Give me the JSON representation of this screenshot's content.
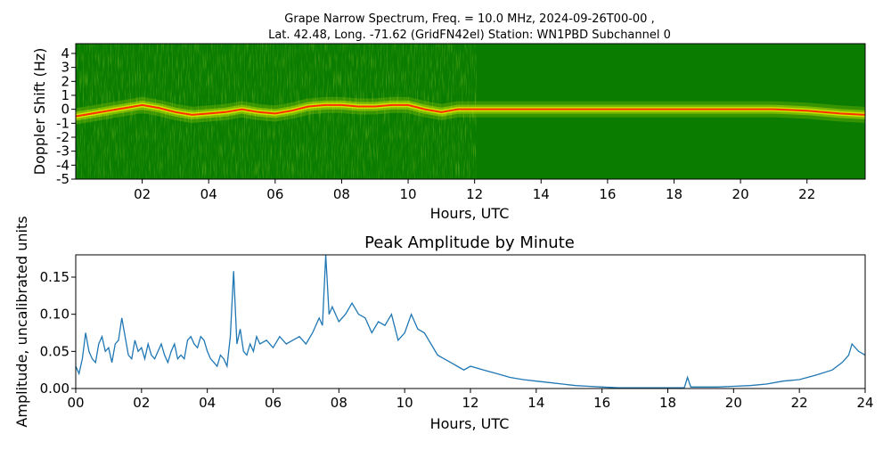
{
  "chart_data": [
    {
      "type": "heatmap",
      "title_line1": "Grape Narrow Spectrum, Freq. = 10.0 MHz, 2024-09-26T00-00 ,",
      "title_line2": "Lat.  42.48, Long. -71.62 (GridFN42el) Station: WN1PBD Subchannel 0",
      "xlabel": "Hours, UTC",
      "ylabel": "Doppler Shift (Hz)",
      "xlim": [
        0,
        23.75
      ],
      "ylim": [
        -5,
        4.7
      ],
      "x_ticks": [
        2,
        4,
        6,
        8,
        10,
        12,
        14,
        16,
        18,
        20,
        22
      ],
      "x_tick_labels": [
        "02",
        "04",
        "06",
        "08",
        "10",
        "12",
        "14",
        "16",
        "18",
        "20",
        "22"
      ],
      "y_ticks": [
        4,
        3,
        2,
        1,
        0,
        -1,
        -2,
        -3,
        -4,
        -5
      ],
      "y_tick_labels": [
        "4",
        "3",
        "2",
        "1",
        "0",
        "-1",
        "-2",
        "-3",
        "-4",
        "-5"
      ],
      "colormap": [
        "#007f00",
        "#ffff00",
        "#ff0000"
      ],
      "ridge": {
        "hours": [
          0,
          0.5,
          1,
          1.5,
          2,
          2.5,
          3,
          3.5,
          4,
          4.5,
          5,
          5.5,
          6,
          6.5,
          7,
          7.5,
          8,
          8.5,
          9,
          9.5,
          10,
          10.5,
          11,
          11.5,
          12,
          13,
          14,
          15,
          16,
          17,
          18,
          19,
          20,
          21,
          22,
          23,
          23.75
        ],
        "doppler_hz": [
          -0.5,
          -0.3,
          -0.1,
          0.1,
          0.3,
          0.1,
          -0.2,
          -0.4,
          -0.3,
          -0.2,
          0,
          -0.2,
          -0.3,
          -0.1,
          0.2,
          0.3,
          0.3,
          0.2,
          0.2,
          0.3,
          0.3,
          0,
          -0.2,
          0,
          0,
          0,
          0,
          0,
          0,
          0,
          0,
          0,
          0,
          0,
          -0.1,
          -0.3,
          -0.4
        ]
      }
    },
    {
      "type": "line",
      "title": "Peak Amplitude by Minute",
      "xlabel": "Hours, UTC",
      "ylabel": "Amplitude, uncalibrated units",
      "xlim": [
        0,
        24
      ],
      "ylim": [
        0,
        0.18
      ],
      "x_ticks": [
        0,
        2,
        4,
        6,
        8,
        10,
        12,
        14,
        16,
        18,
        20,
        22,
        24
      ],
      "x_tick_labels": [
        "00",
        "02",
        "04",
        "06",
        "08",
        "10",
        "12",
        "14",
        "16",
        "18",
        "20",
        "22",
        "24"
      ],
      "y_ticks": [
        0,
        0.05,
        0.1,
        0.15
      ],
      "y_tick_labels": [
        "0.00",
        "0.05",
        "0.10",
        "0.15"
      ],
      "color": "#1f77b4",
      "x": [
        0,
        0.1,
        0.2,
        0.3,
        0.4,
        0.5,
        0.6,
        0.7,
        0.8,
        0.9,
        1.0,
        1.1,
        1.2,
        1.3,
        1.4,
        1.5,
        1.6,
        1.7,
        1.8,
        1.9,
        2.0,
        2.1,
        2.2,
        2.3,
        2.4,
        2.5,
        2.6,
        2.7,
        2.8,
        2.9,
        3.0,
        3.1,
        3.2,
        3.3,
        3.4,
        3.5,
        3.6,
        3.7,
        3.8,
        3.9,
        4.0,
        4.1,
        4.2,
        4.3,
        4.4,
        4.5,
        4.6,
        4.7,
        4.8,
        4.9,
        5.0,
        5.1,
        5.2,
        5.3,
        5.4,
        5.5,
        5.6,
        5.8,
        6.0,
        6.2,
        6.4,
        6.6,
        6.8,
        7.0,
        7.2,
        7.4,
        7.5,
        7.6,
        7.7,
        7.8,
        8.0,
        8.2,
        8.4,
        8.6,
        8.8,
        9.0,
        9.2,
        9.4,
        9.6,
        9.8,
        10.0,
        10.2,
        10.4,
        10.6,
        10.8,
        11.0,
        11.2,
        11.4,
        11.6,
        11.8,
        12.0,
        12.4,
        12.8,
        13.2,
        13.6,
        14.0,
        14.4,
        14.8,
        15.2,
        15.6,
        16.0,
        16.5,
        17.0,
        17.5,
        18.0,
        18.5,
        18.6,
        18.7,
        19.0,
        19.5,
        20.0,
        20.5,
        21.0,
        21.5,
        22.0,
        22.5,
        23.0,
        23.3,
        23.5,
        23.6,
        23.8,
        24.0
      ],
      "y": [
        0.03,
        0.02,
        0.04,
        0.075,
        0.05,
        0.04,
        0.035,
        0.06,
        0.07,
        0.05,
        0.055,
        0.035,
        0.06,
        0.065,
        0.095,
        0.07,
        0.045,
        0.04,
        0.065,
        0.05,
        0.055,
        0.04,
        0.06,
        0.045,
        0.04,
        0.05,
        0.06,
        0.045,
        0.035,
        0.05,
        0.06,
        0.04,
        0.045,
        0.04,
        0.065,
        0.07,
        0.06,
        0.055,
        0.07,
        0.065,
        0.05,
        0.04,
        0.035,
        0.03,
        0.045,
        0.04,
        0.03,
        0.07,
        0.158,
        0.06,
        0.08,
        0.05,
        0.045,
        0.06,
        0.05,
        0.07,
        0.06,
        0.065,
        0.055,
        0.07,
        0.06,
        0.065,
        0.07,
        0.06,
        0.075,
        0.095,
        0.085,
        0.18,
        0.1,
        0.11,
        0.09,
        0.1,
        0.115,
        0.1,
        0.095,
        0.075,
        0.09,
        0.085,
        0.1,
        0.065,
        0.075,
        0.1,
        0.08,
        0.075,
        0.06,
        0.045,
        0.04,
        0.035,
        0.03,
        0.025,
        0.03,
        0.025,
        0.02,
        0.015,
        0.012,
        0.01,
        0.008,
        0.006,
        0.004,
        0.003,
        0.002,
        0.001,
        0.001,
        0.001,
        0.001,
        0.001,
        0.015,
        0.002,
        0.002,
        0.002,
        0.003,
        0.004,
        0.006,
        0.01,
        0.012,
        0.018,
        0.025,
        0.035,
        0.045,
        0.06,
        0.05,
        0.045
      ]
    }
  ]
}
